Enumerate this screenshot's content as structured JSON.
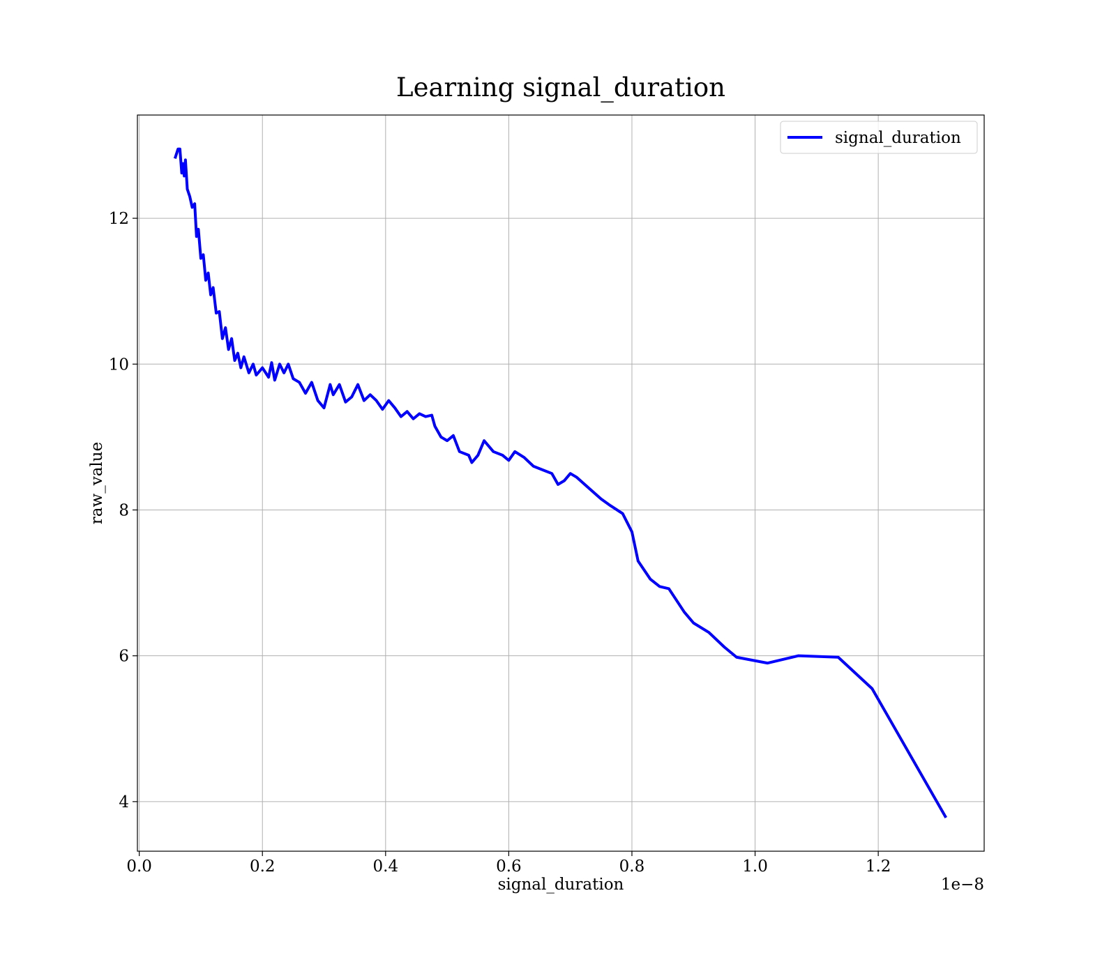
{
  "chart_data": {
    "type": "line",
    "title": "Learning signal_duration",
    "xlabel": "signal_duration",
    "ylabel": "raw_value",
    "x_offset_label": "1e−8",
    "x": [
      0.058,
      0.063,
      0.066,
      0.069,
      0.071,
      0.073,
      0.075,
      0.078,
      0.082,
      0.086,
      0.09,
      0.093,
      0.096,
      0.1,
      0.104,
      0.108,
      0.112,
      0.116,
      0.12,
      0.125,
      0.13,
      0.135,
      0.14,
      0.145,
      0.15,
      0.155,
      0.16,
      0.165,
      0.17,
      0.178,
      0.185,
      0.19,
      0.2,
      0.21,
      0.215,
      0.22,
      0.228,
      0.235,
      0.242,
      0.25,
      0.26,
      0.27,
      0.28,
      0.29,
      0.3,
      0.31,
      0.315,
      0.325,
      0.335,
      0.345,
      0.355,
      0.365,
      0.375,
      0.385,
      0.395,
      0.405,
      0.415,
      0.425,
      0.435,
      0.445,
      0.455,
      0.465,
      0.475,
      0.48,
      0.49,
      0.5,
      0.51,
      0.52,
      0.535,
      0.54,
      0.55,
      0.56,
      0.575,
      0.59,
      0.6,
      0.61,
      0.625,
      0.64,
      0.655,
      0.67,
      0.68,
      0.69,
      0.7,
      0.71,
      0.73,
      0.75,
      0.765,
      0.785,
      0.8,
      0.81,
      0.83,
      0.845,
      0.86,
      0.885,
      0.9,
      0.925,
      0.95,
      0.97,
      1.02,
      1.07,
      1.135,
      1.19,
      1.31
    ],
    "series": [
      {
        "name": "signal_duration",
        "color": "#0000ff",
        "values": [
          12.82,
          12.95,
          12.95,
          12.62,
          12.75,
          12.58,
          12.8,
          12.4,
          12.3,
          12.15,
          12.2,
          11.75,
          11.85,
          11.45,
          11.5,
          11.15,
          11.25,
          10.95,
          11.05,
          10.7,
          10.72,
          10.35,
          10.5,
          10.2,
          10.35,
          10.05,
          10.15,
          9.95,
          10.1,
          9.88,
          10.0,
          9.85,
          9.95,
          9.82,
          10.02,
          9.78,
          10.0,
          9.88,
          10.0,
          9.8,
          9.75,
          9.6,
          9.75,
          9.5,
          9.4,
          9.72,
          9.58,
          9.72,
          9.48,
          9.55,
          9.72,
          9.5,
          9.58,
          9.5,
          9.38,
          9.5,
          9.4,
          9.28,
          9.35,
          9.25,
          9.32,
          9.28,
          9.3,
          9.15,
          9.0,
          8.95,
          9.02,
          8.8,
          8.75,
          8.65,
          8.75,
          8.95,
          8.8,
          8.75,
          8.68,
          8.8,
          8.72,
          8.6,
          8.55,
          8.5,
          8.35,
          8.4,
          8.5,
          8.45,
          8.3,
          8.15,
          8.06,
          7.95,
          7.7,
          7.3,
          7.05,
          6.95,
          6.92,
          6.6,
          6.45,
          6.32,
          6.12,
          5.98,
          5.9,
          6.0,
          5.98,
          5.55,
          3.78
        ]
      }
    ],
    "xlim": [
      -0.003,
      1.372
    ],
    "ylim": [
      3.32,
      13.416
    ],
    "xticks": [
      {
        "value": 0,
        "label": "0.0"
      },
      0.2,
      0.4,
      0.6,
      0.8,
      {
        "value": 1,
        "label": "1.0"
      },
      1.2
    ],
    "yticks": [
      4,
      6,
      8,
      10,
      12
    ],
    "grid": true,
    "legend": "upper right"
  }
}
